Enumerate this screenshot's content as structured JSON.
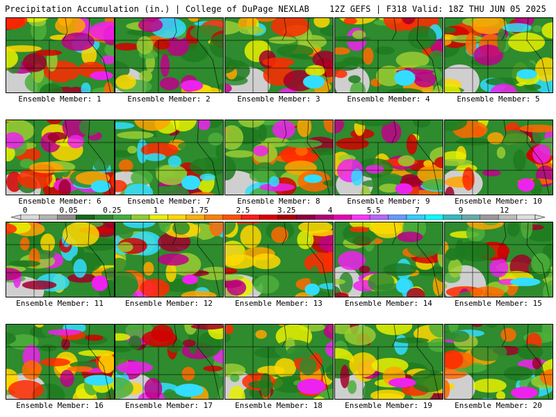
{
  "header": {
    "title_left": "Precipitation Accumulation (in.) | College of DuPage NEXLAB",
    "title_right": "12Z GEFS | F318 Valid: 18Z THU JUN 05 2025"
  },
  "panels": [
    {
      "label": "Ensemble Member: 1"
    },
    {
      "label": "Ensemble Member: 2"
    },
    {
      "label": "Ensemble Member: 3"
    },
    {
      "label": "Ensemble Member: 4"
    },
    {
      "label": "Ensemble Member: 5"
    },
    {
      "label": "Ensemble Member: 6"
    },
    {
      "label": "Ensemble Member: 7"
    },
    {
      "label": "Ensemble Member: 8"
    },
    {
      "label": "Ensemble Member: 9"
    },
    {
      "label": "Ensemble Member: 10"
    },
    {
      "label": "Ensemble Member: 11"
    },
    {
      "label": "Ensemble Member: 12"
    },
    {
      "label": "Ensemble Member: 13"
    },
    {
      "label": "Ensemble Member: 14"
    },
    {
      "label": "Ensemble Member: 15"
    },
    {
      "label": "Ensemble Member: 16"
    },
    {
      "label": "Ensemble Member: 17"
    },
    {
      "label": "Ensemble Member: 18"
    },
    {
      "label": "Ensemble Member: 19"
    },
    {
      "label": "Ensemble Member: 20"
    }
  ],
  "colorbar": {
    "tick_labels": [
      "0",
      "0.05",
      "0.25",
      "1",
      "1.75",
      "2.5",
      "3.25",
      "4",
      "5.5",
      "7",
      "9",
      "12"
    ],
    "colors": [
      "#d9d9d9",
      "#b3b3b3",
      "#8c8c8c",
      "#196619",
      "#2b8a2b",
      "#3fae3f",
      "#8ccd2e",
      "#e6f000",
      "#ffd700",
      "#ffb000",
      "#ff8000",
      "#ff5000",
      "#ff1a1a",
      "#d90000",
      "#a80000",
      "#8b0040",
      "#b3007a",
      "#e600b3",
      "#ff33ff",
      "#bb66ff",
      "#6699ff",
      "#33ccff",
      "#00ffff",
      "#33bbbb",
      "#66aaaa",
      "#999999",
      "#bbbbbb",
      "#dddddd"
    ]
  }
}
